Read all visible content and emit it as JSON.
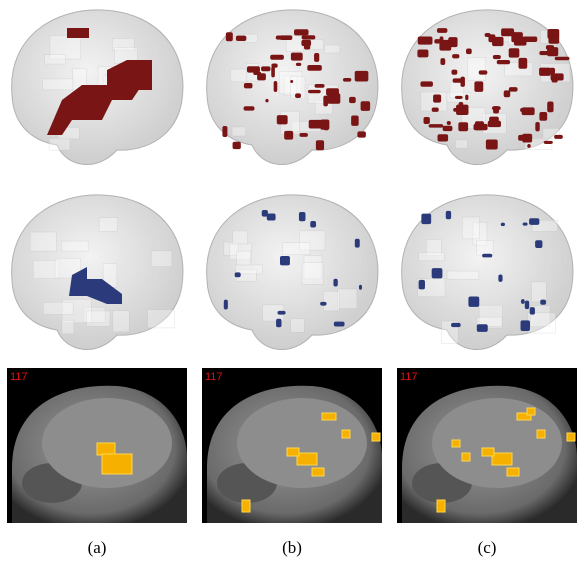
{
  "columns": [
    {
      "slice_label": "117",
      "caption": "(a)"
    },
    {
      "slice_label": "117",
      "caption": "(b)"
    },
    {
      "slice_label": "117",
      "caption": "(c)"
    }
  ]
}
